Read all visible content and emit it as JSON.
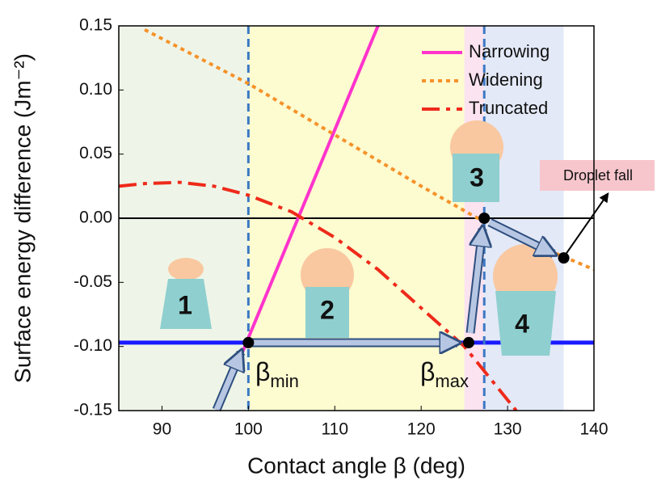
{
  "chart_data": {
    "type": "line",
    "x_label": "Contact angle β (deg)",
    "y_label": "Surface energy difference (Jm⁻²)",
    "xlim": [
      85,
      140
    ],
    "ylim": [
      -0.15,
      0.15
    ],
    "xticks": [
      90,
      100,
      110,
      120,
      130,
      140
    ],
    "yticks": [
      0.15,
      {
        "value": 0.1,
        "label": "0.10"
      },
      0.05,
      {
        "value": 0,
        "label": "0.00"
      },
      -0.05,
      {
        "value": -0.1,
        "label": "-0.10"
      },
      -0.15
    ],
    "grid": false,
    "legend": "upper right",
    "series": [
      {
        "name": "Narrowing",
        "color": "#ff33cc",
        "style": "solid",
        "x": [
          96.5,
          115
        ],
        "values": [
          -0.15,
          0.15
        ]
      },
      {
        "name": "Widening",
        "color": "#f5922a",
        "style": "dot",
        "x": [
          88,
          100,
          110,
          120,
          126,
          130,
          136.5,
          140
        ],
        "values": [
          0.147,
          0.105,
          0.065,
          0.025,
          0.002,
          -0.012,
          -0.03,
          -0.04
        ]
      },
      {
        "name": "Truncated",
        "color": "#ee2a1a",
        "style": "dashdot",
        "x": [
          85,
          88,
          92,
          96,
          100,
          105,
          110,
          115,
          120,
          125,
          128,
          131
        ],
        "values": [
          0.025,
          0.027,
          0.028,
          0.025,
          0.018,
          0.005,
          -0.015,
          -0.04,
          -0.07,
          -0.1,
          -0.125,
          -0.15
        ]
      }
    ],
    "regions": [
      {
        "x": [
          85,
          100
        ],
        "color": "#eef5e8"
      },
      {
        "x": [
          100,
          125
        ],
        "color": "#fdfbd0"
      },
      {
        "x": [
          125,
          127.3
        ],
        "color": "#fbe3f0"
      },
      {
        "x": [
          127.3,
          136.5
        ],
        "color": "#e3e9f7"
      }
    ],
    "hlines": [
      {
        "y": 0,
        "color": "#000000"
      },
      {
        "y": -0.097,
        "color": "#1a1aff"
      }
    ],
    "vlines": [
      100,
      127.3
    ],
    "points": {
      "x": [
        100,
        125.5,
        127.3,
        136.5
      ],
      "y": [
        -0.097,
        -0.097,
        0,
        -0.031
      ]
    },
    "region_labels": [
      "1",
      "2",
      "3",
      "4"
    ],
    "beta_min": {
      "symbol": "β",
      "sub": "min"
    },
    "beta_max": {
      "symbol": "β",
      "sub": "max"
    },
    "annotation": "Droplet fall"
  }
}
